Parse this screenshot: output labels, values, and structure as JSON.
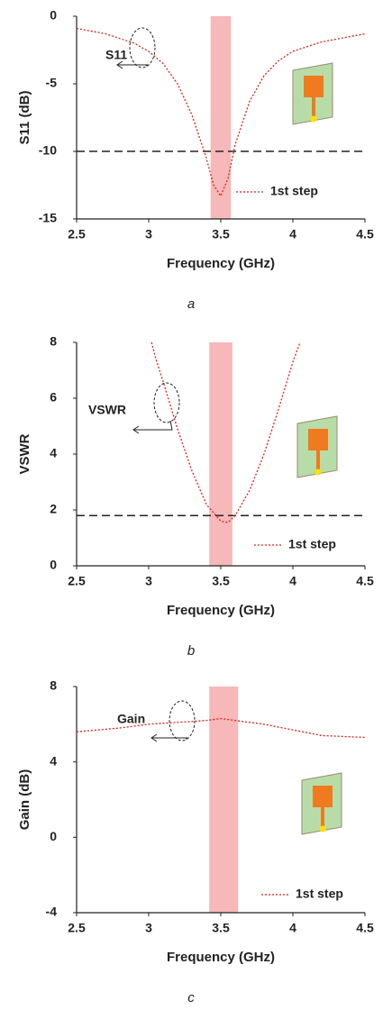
{
  "chart_data": [
    {
      "type": "line",
      "xlabel": "Frequency (GHz)",
      "ylabel": "S11 (dB)",
      "caption": "a",
      "annotation": "S11",
      "x": [
        2.5,
        2.7,
        2.9,
        3.0,
        3.1,
        3.2,
        3.3,
        3.4,
        3.45,
        3.5,
        3.55,
        3.6,
        3.7,
        3.8,
        3.9,
        4.0,
        4.2,
        4.5
      ],
      "series": [
        {
          "name": "1st step",
          "color": "#e0201b",
          "values": [
            -0.9,
            -1.3,
            -2.0,
            -2.6,
            -3.5,
            -5.0,
            -7.3,
            -10.5,
            -12.5,
            -13.3,
            -12.0,
            -9.5,
            -6.3,
            -4.4,
            -3.3,
            -2.6,
            -1.9,
            -1.3
          ]
        }
      ],
      "xlim": [
        2.5,
        4.5
      ],
      "xticks": [
        2.5,
        3,
        3.5,
        4,
        4.5
      ],
      "ylim": [
        -15,
        0
      ],
      "yticks": [
        0,
        -5,
        -10,
        -15
      ],
      "hline": -10,
      "band": [
        3.43,
        3.57
      ],
      "band_color": "#f4a6a6"
    },
    {
      "type": "line",
      "xlabel": "Frequency (GHz)",
      "ylabel": "VSWR",
      "caption": "b",
      "annotation": "VSWR",
      "x": [
        3.02,
        3.05,
        3.1,
        3.2,
        3.3,
        3.4,
        3.5,
        3.55,
        3.6,
        3.7,
        3.8,
        3.9,
        4.0,
        4.05
      ],
      "series": [
        {
          "name": "1st step",
          "color": "#e0201b",
          "values": [
            8,
            7.4,
            6.6,
            4.9,
            3.4,
            2.2,
            1.6,
            1.55,
            1.8,
            2.7,
            4.0,
            5.6,
            7.3,
            8
          ]
        }
      ],
      "xlim": [
        2.5,
        4.5
      ],
      "xticks": [
        2.5,
        3,
        3.5,
        4,
        4.5
      ],
      "ylim": [
        0,
        8
      ],
      "yticks": [
        0,
        2,
        4,
        6,
        8
      ],
      "hline": 1.8,
      "band": [
        3.42,
        3.58
      ],
      "band_color": "#f4a6a6"
    },
    {
      "type": "line",
      "xlabel": "Frequency (GHz)",
      "ylabel": "Gain (dB)",
      "caption": "c",
      "annotation": "Gain",
      "x": [
        2.5,
        2.8,
        3.0,
        3.2,
        3.4,
        3.5,
        3.6,
        3.8,
        4.0,
        4.2,
        4.5
      ],
      "series": [
        {
          "name": "1st step",
          "color": "#e0201b",
          "values": [
            5.6,
            5.8,
            6.0,
            6.1,
            6.2,
            6.3,
            6.2,
            6.0,
            5.7,
            5.4,
            5.3
          ]
        }
      ],
      "xlim": [
        2.5,
        4.5
      ],
      "xticks": [
        2.5,
        3,
        3.5,
        4,
        4.5
      ],
      "ylim": [
        -4,
        8
      ],
      "yticks": [
        -4,
        0,
        4,
        8
      ],
      "band": [
        3.42,
        3.62
      ],
      "band_color": "#f4a6a6"
    }
  ]
}
